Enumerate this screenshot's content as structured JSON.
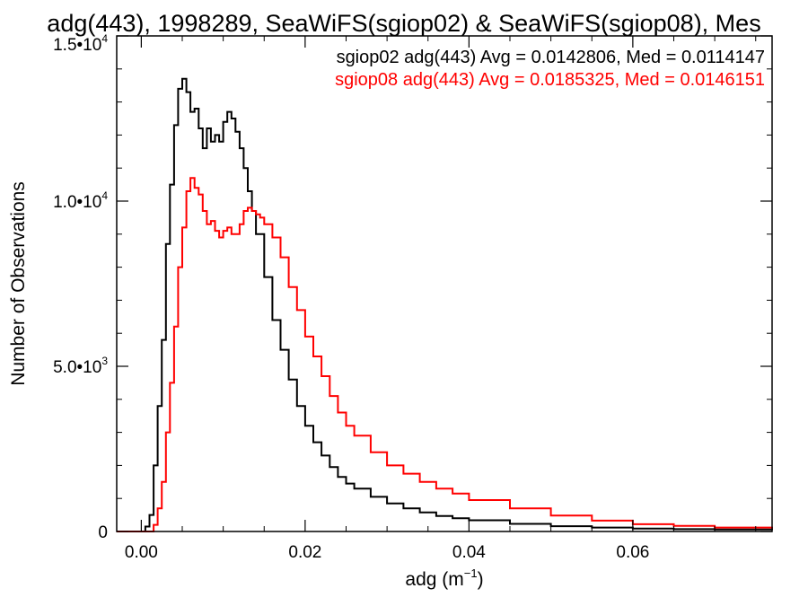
{
  "chart_data": {
    "type": "line",
    "title": "adg(443), 1998289, SeaWiFS(sgiop02) & SeaWiFS(sgiop08), Mes",
    "xlabel": "adg (m",
    "xlabel_sup": "−1",
    "xlabel_close": ")",
    "ylabel": "Number of Observations",
    "xlim": [
      -0.003,
      0.077
    ],
    "ylim": [
      0,
      15000
    ],
    "x_ticks": [
      {
        "value": 0.0,
        "label": "0.00"
      },
      {
        "value": 0.02,
        "label": "0.02"
      },
      {
        "value": 0.04,
        "label": "0.04"
      },
      {
        "value": 0.06,
        "label": "0.06"
      }
    ],
    "y_ticks": [
      {
        "value": 0,
        "mant": "0",
        "exp": ""
      },
      {
        "value": 5000,
        "mant": "5.0•10",
        "exp": "3"
      },
      {
        "value": 10000,
        "mant": "1.0•10",
        "exp": "4"
      },
      {
        "value": 15000,
        "mant": "1.5•10",
        "exp": "4"
      }
    ],
    "series": [
      {
        "name": "sgiop02",
        "label": "sgiop02 adg(443) Avg = 0.0142806, Med = 0.0114147",
        "color": "#000000",
        "x": [
          -0.003,
          0.0005,
          0.001,
          0.0015,
          0.002,
          0.0025,
          0.003,
          0.0035,
          0.004,
          0.0045,
          0.005,
          0.0055,
          0.006,
          0.0065,
          0.007,
          0.0075,
          0.008,
          0.0085,
          0.009,
          0.0095,
          0.01,
          0.0105,
          0.011,
          0.0115,
          0.012,
          0.0125,
          0.013,
          0.0135,
          0.014,
          0.015,
          0.016,
          0.017,
          0.018,
          0.019,
          0.02,
          0.021,
          0.022,
          0.023,
          0.024,
          0.025,
          0.026,
          0.028,
          0.03,
          0.032,
          0.034,
          0.036,
          0.038,
          0.04,
          0.045,
          0.05,
          0.055,
          0.06,
          0.065,
          0.07,
          0.077
        ],
        "y": [
          0,
          150,
          500,
          2000,
          3800,
          5800,
          8700,
          10500,
          12300,
          13400,
          13700,
          13300,
          12700,
          12800,
          12200,
          11600,
          12200,
          11800,
          12000,
          11800,
          12400,
          12700,
          12500,
          12100,
          11600,
          11000,
          10300,
          9700,
          9000,
          7700,
          6400,
          5500,
          4600,
          3800,
          3200,
          2700,
          2300,
          1950,
          1650,
          1450,
          1300,
          1050,
          850,
          700,
          580,
          470,
          400,
          340,
          230,
          160,
          120,
          90,
          70,
          60,
          50
        ]
      },
      {
        "name": "sgiop08",
        "label": "sgiop08 adg(443) Avg = 0.0185325, Med = 0.0146151",
        "color": "#ff0000",
        "x": [
          -0.003,
          0.001,
          0.0015,
          0.002,
          0.0025,
          0.003,
          0.0035,
          0.004,
          0.0045,
          0.005,
          0.0055,
          0.006,
          0.0065,
          0.007,
          0.0075,
          0.008,
          0.0085,
          0.009,
          0.0095,
          0.01,
          0.0105,
          0.011,
          0.0115,
          0.012,
          0.0125,
          0.013,
          0.0135,
          0.014,
          0.0145,
          0.015,
          0.016,
          0.017,
          0.018,
          0.019,
          0.02,
          0.021,
          0.022,
          0.023,
          0.024,
          0.025,
          0.026,
          0.028,
          0.03,
          0.032,
          0.034,
          0.036,
          0.038,
          0.04,
          0.045,
          0.05,
          0.055,
          0.06,
          0.065,
          0.07,
          0.077
        ],
        "y": [
          0,
          0,
          200,
          700,
          1500,
          3000,
          4500,
          6200,
          8000,
          9200,
          10300,
          10700,
          10400,
          10200,
          9700,
          9300,
          9400,
          9100,
          8900,
          9100,
          9200,
          9000,
          9000,
          9300,
          9700,
          9800,
          9700,
          9600,
          9500,
          9300,
          8900,
          8300,
          7400,
          6700,
          5900,
          5300,
          4700,
          4100,
          3600,
          3200,
          2900,
          2400,
          2000,
          1750,
          1500,
          1300,
          1150,
          950,
          700,
          480,
          330,
          220,
          170,
          120,
          90
        ]
      }
    ],
    "grid": false,
    "legend": "top-right"
  }
}
